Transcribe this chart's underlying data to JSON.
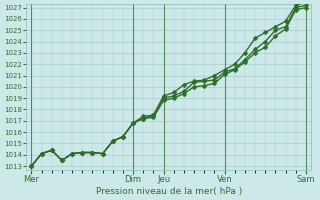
{
  "xlabel": "Pression niveau de la mer( hPa )",
  "ylim": [
    1013,
    1027
  ],
  "yticks": [
    1013,
    1014,
    1015,
    1016,
    1017,
    1018,
    1019,
    1020,
    1021,
    1022,
    1023,
    1024,
    1025,
    1026,
    1027
  ],
  "background_color": "#cce8e8",
  "grid_color": "#aacccc",
  "line_color": "#2d6e2d",
  "marker": "D",
  "line_width": 1.0,
  "marker_size": 2.5,
  "n_points": 28,
  "vline_x": [
    0,
    10,
    13,
    19,
    27
  ],
  "day_labels": [
    "Mer",
    "Dim",
    "Jeu",
    "Ven",
    "Sam"
  ],
  "lines": [
    [
      1013.0,
      1014.1,
      1014.4,
      1013.5,
      1014.1,
      1014.2,
      1014.2,
      1014.1,
      1015.2,
      1015.6,
      1016.8,
      1017.2,
      1017.3,
      1018.8,
      1019.0,
      1019.4,
      1020.0,
      1020.1,
      1020.3,
      1021.1,
      1021.5,
      1022.2,
      1023.0,
      1023.5,
      1024.5,
      1025.1,
      1026.8,
      1027.0
    ],
    [
      1013.0,
      1014.1,
      1014.4,
      1013.5,
      1014.1,
      1014.2,
      1014.2,
      1014.1,
      1015.2,
      1015.6,
      1016.8,
      1017.2,
      1017.5,
      1019.0,
      1019.2,
      1019.6,
      1020.4,
      1020.5,
      1020.6,
      1021.3,
      1021.6,
      1022.4,
      1023.3,
      1024.0,
      1025.0,
      1025.3,
      1027.0,
      1027.2
    ],
    [
      1013.0,
      1014.1,
      1014.4,
      1013.5,
      1014.1,
      1014.2,
      1014.2,
      1014.1,
      1015.2,
      1015.6,
      1016.8,
      1017.4,
      1017.5,
      1019.2,
      1019.5,
      1020.2,
      1020.5,
      1020.6,
      1021.0,
      1021.5,
      1022.0,
      1023.0,
      1024.3,
      1024.8,
      1025.3,
      1025.8,
      1027.2,
      1027.5
    ]
  ]
}
